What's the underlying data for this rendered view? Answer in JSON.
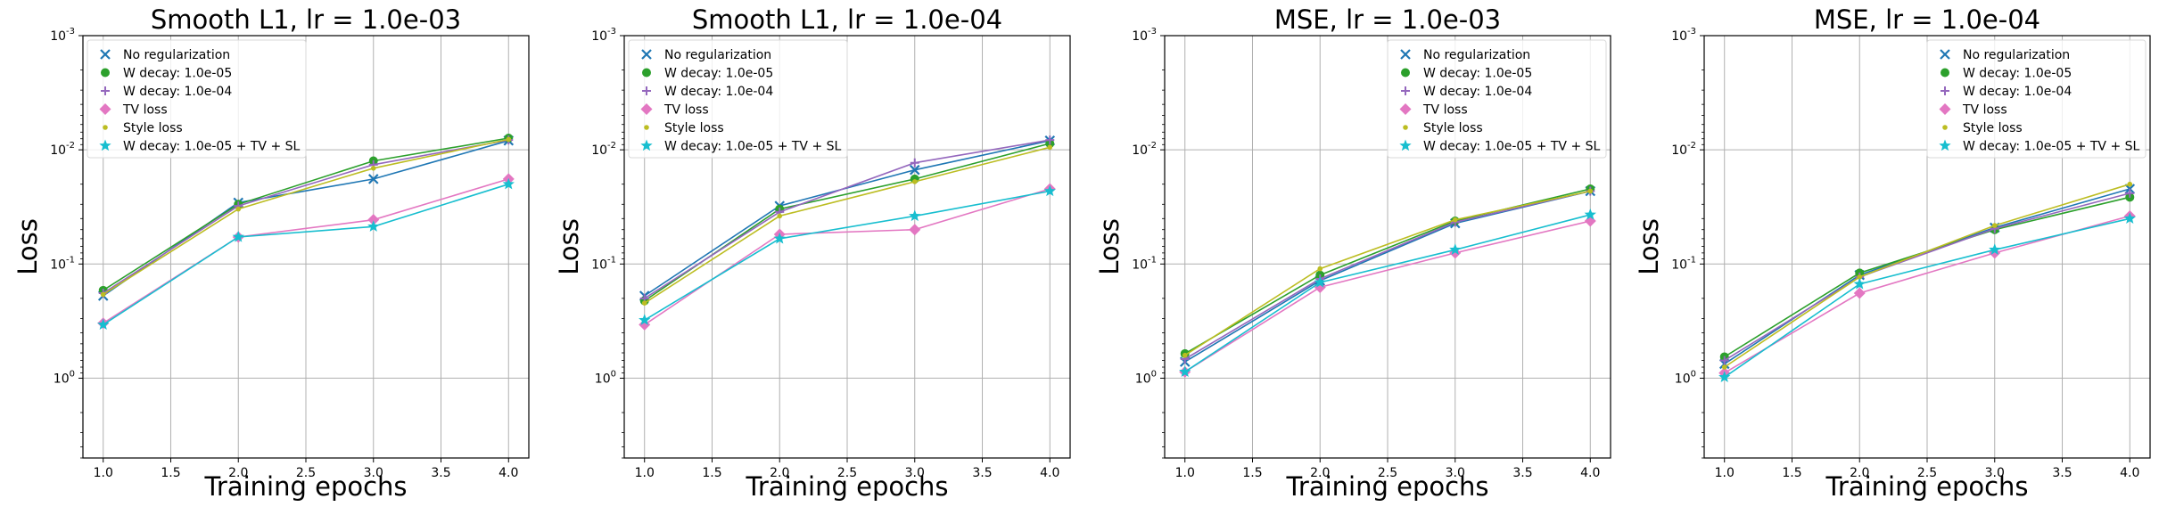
{
  "colors": {
    "no_reg": "#1f77b4",
    "wd5": "#2ca02c",
    "wd4": "#9467bd",
    "tv": "#e377c2",
    "style": "#bcbd22",
    "combo": "#17becf"
  },
  "chart_data": [
    {
      "type": "line",
      "title": "Smooth L1, lr = 1.0e-03",
      "xlabel": "Training epochs",
      "ylabel": "Loss",
      "x": [
        1,
        2,
        3,
        4
      ],
      "xlim": [
        0.85,
        4.15
      ],
      "xticks": [
        "1.0",
        "1.5",
        "2.0",
        "2.5",
        "3.0",
        "3.5",
        "4.0"
      ],
      "ylim": [
        5,
        0.001
      ],
      "yscale": "log",
      "yaxis_inverted": true,
      "yticks": [
        {
          "base": "10",
          "exp": "-3"
        },
        {
          "base": "10",
          "exp": "-2"
        },
        {
          "base": "10",
          "exp": "-1"
        },
        {
          "base": "10",
          "exp": "0"
        }
      ],
      "grid": true,
      "legend_position": "top-left",
      "series": [
        {
          "name": "No regularization",
          "marker": "x",
          "color_key": "no_reg",
          "values": [
            0.19,
            0.029,
            0.018,
            0.0083
          ]
        },
        {
          "name": "W decay: 1.0e-05",
          "marker": "circle",
          "color_key": "wd5",
          "values": [
            0.17,
            0.03,
            0.0125,
            0.0079
          ]
        },
        {
          "name": "W decay: 1.0e-04",
          "marker": "plus",
          "color_key": "wd4",
          "values": [
            0.18,
            0.031,
            0.0135,
            0.0082
          ]
        },
        {
          "name": "TV loss",
          "marker": "diamond",
          "color_key": "tv",
          "values": [
            0.33,
            0.058,
            0.041,
            0.018
          ]
        },
        {
          "name": "Style loss",
          "marker": "dot",
          "color_key": "style",
          "values": [
            0.185,
            0.033,
            0.0145,
            0.0081
          ]
        },
        {
          "name": "W decay: 1.0e-05 + TV + SL",
          "marker": "star",
          "color_key": "combo",
          "values": [
            0.34,
            0.058,
            0.047,
            0.02
          ]
        }
      ]
    },
    {
      "type": "line",
      "title": "Smooth L1, lr = 1.0e-04",
      "xlabel": "Training epochs",
      "ylabel": "Loss",
      "x": [
        1,
        2,
        3,
        4
      ],
      "xlim": [
        0.85,
        4.15
      ],
      "xticks": [
        "1.0",
        "1.5",
        "2.0",
        "2.5",
        "3.0",
        "3.5",
        "4.0"
      ],
      "ylim": [
        5,
        0.001
      ],
      "yscale": "log",
      "yaxis_inverted": true,
      "yticks": [
        {
          "base": "10",
          "exp": "-3"
        },
        {
          "base": "10",
          "exp": "-2"
        },
        {
          "base": "10",
          "exp": "-1"
        },
        {
          "base": "10",
          "exp": "0"
        }
      ],
      "grid": true,
      "legend_position": "top-left",
      "series": [
        {
          "name": "No regularization",
          "marker": "x",
          "color_key": "no_reg",
          "values": [
            0.19,
            0.031,
            0.015,
            0.0083
          ]
        },
        {
          "name": "W decay: 1.0e-05",
          "marker": "circle",
          "color_key": "wd5",
          "values": [
            0.21,
            0.033,
            0.018,
            0.0088
          ]
        },
        {
          "name": "W decay: 1.0e-04",
          "marker": "plus",
          "color_key": "wd4",
          "values": [
            0.2,
            0.035,
            0.013,
            0.0082
          ]
        },
        {
          "name": "TV loss",
          "marker": "diamond",
          "color_key": "tv",
          "values": [
            0.34,
            0.055,
            0.05,
            0.022
          ]
        },
        {
          "name": "Style loss",
          "marker": "dot",
          "color_key": "style",
          "values": [
            0.22,
            0.038,
            0.019,
            0.0095
          ]
        },
        {
          "name": "W decay: 1.0e-05 + TV + SL",
          "marker": "star",
          "color_key": "combo",
          "values": [
            0.31,
            0.06,
            0.038,
            0.023
          ]
        }
      ]
    },
    {
      "type": "line",
      "title": "MSE, lr = 1.0e-03",
      "xlabel": "Training epochs",
      "ylabel": "Loss",
      "x": [
        1,
        2,
        3,
        4
      ],
      "xlim": [
        0.85,
        4.15
      ],
      "xticks": [
        "1.0",
        "1.5",
        "2.0",
        "2.5",
        "3.0",
        "3.5",
        "4.0"
      ],
      "ylim": [
        5,
        0.001
      ],
      "yscale": "log",
      "yaxis_inverted": true,
      "yticks": [
        {
          "base": "10",
          "exp": "-3"
        },
        {
          "base": "10",
          "exp": "-2"
        },
        {
          "base": "10",
          "exp": "-1"
        },
        {
          "base": "10",
          "exp": "0"
        }
      ],
      "grid": true,
      "legend_position": "top-right",
      "series": [
        {
          "name": "No regularization",
          "marker": "x",
          "color_key": "no_reg",
          "values": [
            0.72,
            0.14,
            0.044,
            0.023
          ]
        },
        {
          "name": "W decay: 1.0e-05",
          "marker": "circle",
          "color_key": "wd5",
          "values": [
            0.61,
            0.125,
            0.042,
            0.022
          ]
        },
        {
          "name": "W decay: 1.0e-04",
          "marker": "plus",
          "color_key": "wd4",
          "values": [
            0.68,
            0.135,
            0.043,
            0.023
          ]
        },
        {
          "name": "TV loss",
          "marker": "diamond",
          "color_key": "tv",
          "values": [
            0.88,
            0.16,
            0.08,
            0.042
          ]
        },
        {
          "name": "Style loss",
          "marker": "dot",
          "color_key": "style",
          "values": [
            0.63,
            0.11,
            0.041,
            0.023
          ]
        },
        {
          "name": "W decay: 1.0e-05 + TV + SL",
          "marker": "star",
          "color_key": "combo",
          "values": [
            0.88,
            0.145,
            0.075,
            0.037
          ]
        }
      ]
    },
    {
      "type": "line",
      "title": "MSE, lr = 1.0e-04",
      "xlabel": "Training epochs",
      "ylabel": "Loss",
      "x": [
        1,
        2,
        3,
        4
      ],
      "xlim": [
        0.85,
        4.15
      ],
      "xticks": [
        "1.0",
        "1.5",
        "2.0",
        "2.5",
        "3.0",
        "3.5",
        "4.0"
      ],
      "ylim": [
        5,
        0.001
      ],
      "yscale": "log",
      "yaxis_inverted": true,
      "yticks": [
        {
          "base": "10",
          "exp": "-3"
        },
        {
          "base": "10",
          "exp": "-2"
        },
        {
          "base": "10",
          "exp": "-1"
        },
        {
          "base": "10",
          "exp": "0"
        }
      ],
      "grid": true,
      "legend_position": "top-right",
      "series": [
        {
          "name": "No regularization",
          "marker": "x",
          "color_key": "no_reg",
          "values": [
            0.75,
            0.125,
            0.048,
            0.022
          ]
        },
        {
          "name": "W decay: 1.0e-05",
          "marker": "circle",
          "color_key": "wd5",
          "values": [
            0.65,
            0.12,
            0.05,
            0.026
          ]
        },
        {
          "name": "W decay: 1.0e-04",
          "marker": "plus",
          "color_key": "wd4",
          "values": [
            0.7,
            0.13,
            0.049,
            0.024
          ]
        },
        {
          "name": "TV loss",
          "marker": "diamond",
          "color_key": "tv",
          "values": [
            0.9,
            0.18,
            0.08,
            0.038
          ]
        },
        {
          "name": "Style loss",
          "marker": "dot",
          "color_key": "style",
          "values": [
            0.8,
            0.13,
            0.046,
            0.02
          ]
        },
        {
          "name": "W decay: 1.0e-05 + TV + SL",
          "marker": "star",
          "color_key": "combo",
          "values": [
            0.98,
            0.15,
            0.075,
            0.04
          ]
        }
      ]
    }
  ]
}
